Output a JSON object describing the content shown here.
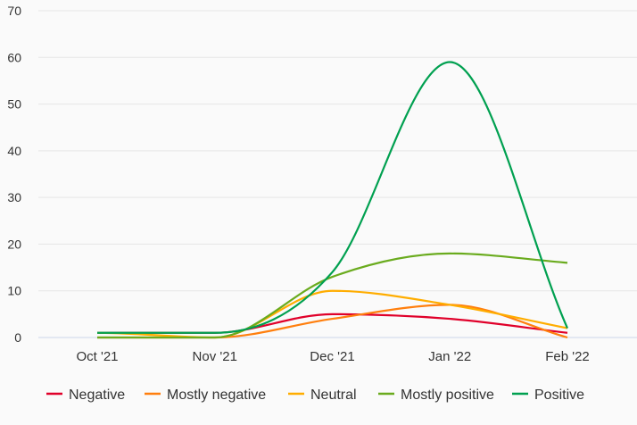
{
  "chart_data": {
    "type": "line",
    "title": "",
    "xlabel": "",
    "ylabel": "",
    "categories": [
      "Oct '21",
      "Nov '21",
      "Dec '21",
      "Jan '22",
      "Feb '22"
    ],
    "ylim": [
      0,
      70
    ],
    "yticks": [
      0,
      10,
      20,
      30,
      40,
      50,
      60,
      70
    ],
    "grid": true,
    "legend_position": "bottom",
    "series": [
      {
        "name": "Negative",
        "color": "#e0002a",
        "values": [
          1,
          1,
          5,
          4,
          1
        ]
      },
      {
        "name": "Mostly negative",
        "color": "#ff7f0e",
        "values": [
          0,
          0,
          4,
          7,
          0
        ]
      },
      {
        "name": "Neutral",
        "color": "#ffad00",
        "values": [
          1,
          0,
          10,
          7,
          2
        ]
      },
      {
        "name": "Mostly positive",
        "color": "#6aab1e",
        "values": [
          0,
          0,
          13,
          18,
          16
        ]
      },
      {
        "name": "Positive",
        "color": "#00a050",
        "values": [
          1,
          1,
          14,
          59,
          2
        ]
      }
    ]
  }
}
